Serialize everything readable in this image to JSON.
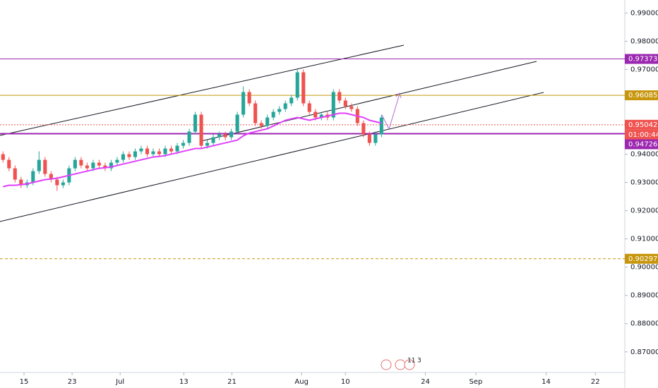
{
  "chart_data": {
    "type": "candlestick",
    "up_color": "#26a69a",
    "down_color": "#ef5350",
    "candles": [
      [
        0.94,
        0.941,
        0.937,
        0.938
      ],
      [
        0.938,
        0.939,
        0.934,
        0.935
      ],
      [
        0.935,
        0.936,
        0.93,
        0.931
      ],
      [
        0.931,
        0.932,
        0.928,
        0.929
      ],
      [
        0.929,
        0.931,
        0.928,
        0.93
      ],
      [
        0.93,
        0.935,
        0.929,
        0.934
      ],
      [
        0.934,
        0.941,
        0.933,
        0.938
      ],
      [
        0.938,
        0.939,
        0.932,
        0.933
      ],
      [
        0.933,
        0.934,
        0.93,
        0.931
      ],
      [
        0.931,
        0.932,
        0.927,
        0.929
      ],
      [
        0.929,
        0.931,
        0.928,
        0.93
      ],
      [
        0.93,
        0.936,
        0.929,
        0.935
      ],
      [
        0.935,
        0.939,
        0.934,
        0.938
      ],
      [
        0.938,
        0.939,
        0.935,
        0.936
      ],
      [
        0.936,
        0.937,
        0.934,
        0.935
      ],
      [
        0.935,
        0.938,
        0.934,
        0.937
      ],
      [
        0.937,
        0.938,
        0.935,
        0.936
      ],
      [
        0.936,
        0.937,
        0.934,
        0.935
      ],
      [
        0.935,
        0.938,
        0.934,
        0.937
      ],
      [
        0.937,
        0.939,
        0.936,
        0.938
      ],
      [
        0.938,
        0.941,
        0.937,
        0.94
      ],
      [
        0.94,
        0.941,
        0.938,
        0.939
      ],
      [
        0.939,
        0.942,
        0.938,
        0.941
      ],
      [
        0.941,
        0.943,
        0.94,
        0.942
      ],
      [
        0.942,
        0.943,
        0.939,
        0.94
      ],
      [
        0.94,
        0.942,
        0.939,
        0.941
      ],
      [
        0.941,
        0.942,
        0.939,
        0.94
      ],
      [
        0.94,
        0.943,
        0.939,
        0.942
      ],
      [
        0.942,
        0.943,
        0.94,
        0.941
      ],
      [
        0.941,
        0.944,
        0.94,
        0.943
      ],
      [
        0.943,
        0.945,
        0.942,
        0.944
      ],
      [
        0.944,
        0.949,
        0.943,
        0.948
      ],
      [
        0.948,
        0.955,
        0.947,
        0.954
      ],
      [
        0.954,
        0.955,
        0.942,
        0.943
      ],
      [
        0.943,
        0.945,
        0.942,
        0.944
      ],
      [
        0.944,
        0.947,
        0.943,
        0.946
      ],
      [
        0.946,
        0.948,
        0.945,
        0.947
      ],
      [
        0.947,
        0.948,
        0.945,
        0.946
      ],
      [
        0.946,
        0.949,
        0.945,
        0.948
      ],
      [
        0.948,
        0.955,
        0.947,
        0.954
      ],
      [
        0.954,
        0.964,
        0.953,
        0.962
      ],
      [
        0.962,
        0.963,
        0.957,
        0.958
      ],
      [
        0.958,
        0.959,
        0.95,
        0.951
      ],
      [
        0.951,
        0.952,
        0.949,
        0.95
      ],
      [
        0.95,
        0.954,
        0.949,
        0.953
      ],
      [
        0.953,
        0.956,
        0.952,
        0.955
      ],
      [
        0.955,
        0.957,
        0.954,
        0.956
      ],
      [
        0.956,
        0.959,
        0.955,
        0.958
      ],
      [
        0.958,
        0.961,
        0.957,
        0.96
      ],
      [
        0.96,
        0.97,
        0.959,
        0.969
      ],
      [
        0.969,
        0.97,
        0.957,
        0.958
      ],
      [
        0.958,
        0.959,
        0.954,
        0.955
      ],
      [
        0.955,
        0.956,
        0.952,
        0.953
      ],
      [
        0.953,
        0.955,
        0.952,
        0.954
      ],
      [
        0.954,
        0.955,
        0.952,
        0.953
      ],
      [
        0.953,
        0.963,
        0.952,
        0.962
      ],
      [
        0.962,
        0.963,
        0.958,
        0.959
      ],
      [
        0.959,
        0.96,
        0.956,
        0.957
      ],
      [
        0.957,
        0.958,
        0.955,
        0.956
      ],
      [
        0.956,
        0.957,
        0.95,
        0.951
      ],
      [
        0.951,
        0.952,
        0.946,
        0.947
      ],
      [
        0.947,
        0.948,
        0.943,
        0.944
      ],
      [
        0.944,
        0.948,
        0.943,
        0.947
      ],
      [
        0.947,
        0.954,
        0.946,
        0.953
      ]
    ],
    "moving_average": {
      "color": "#e040fb",
      "values": [
        0.9285,
        0.929,
        0.929,
        0.9292,
        0.9295,
        0.93,
        0.9305,
        0.931,
        0.9312,
        0.9315,
        0.932,
        0.9325,
        0.933,
        0.9335,
        0.934,
        0.9345,
        0.935,
        0.9352,
        0.9355,
        0.936,
        0.9365,
        0.937,
        0.9375,
        0.938,
        0.9385,
        0.939,
        0.9392,
        0.9395,
        0.94,
        0.9405,
        0.941,
        0.9415,
        0.942,
        0.942,
        0.9425,
        0.943,
        0.9435,
        0.944,
        0.9445,
        0.945,
        0.9465,
        0.9475,
        0.948,
        0.9485,
        0.949,
        0.95,
        0.951,
        0.952,
        0.9525,
        0.953,
        0.9525,
        0.952,
        0.9525,
        0.953,
        0.9535,
        0.954,
        0.9545,
        0.9545,
        0.954,
        0.9535,
        0.953,
        0.952,
        0.9515,
        0.951
      ]
    },
    "levels": [
      {
        "value": 0.97373,
        "color": "#9c27b0",
        "style": "solid"
      },
      {
        "value": 0.96085,
        "color": "#c7960c",
        "style": "solid"
      },
      {
        "value": 0.95042,
        "color": "#ef5350",
        "style": "dotted"
      },
      {
        "value": 0.94726,
        "color": "#9c27b0",
        "style": "thick"
      },
      {
        "value": 0.90297,
        "color": "#c7960c",
        "style": "dashed"
      }
    ],
    "countdown": "01:00:44",
    "ylim": [
      0.8627,
      0.9946
    ],
    "yticks": [
      {
        "value": 0.99,
        "label": "0.99000"
      },
      {
        "value": 0.98,
        "label": "0.98000"
      },
      {
        "value": 0.97,
        "label": "0.97000"
      },
      {
        "value": 0.94,
        "label": "0.94000"
      },
      {
        "value": 0.93,
        "label": "0.93000"
      },
      {
        "value": 0.92,
        "label": "0.92000"
      },
      {
        "value": 0.91,
        "label": "0.91000"
      },
      {
        "value": 0.9,
        "label": "0.90000"
      },
      {
        "value": 0.89,
        "label": "0.89000"
      },
      {
        "value": 0.88,
        "label": "0.88000"
      },
      {
        "value": 0.87,
        "label": "0.87000"
      }
    ],
    "xlim": [
      0,
      104
    ],
    "xticks": [
      {
        "value": 4,
        "label": "15"
      },
      {
        "value": 12,
        "label": "23"
      },
      {
        "value": 20,
        "label": "Jul"
      },
      {
        "value": 30.6,
        "label": "13"
      },
      {
        "value": 38.6,
        "label": "21"
      },
      {
        "value": 50.2,
        "label": "Aug"
      },
      {
        "value": 57.5,
        "label": "10"
      },
      {
        "value": 70.8,
        "label": "24"
      },
      {
        "value": 79.2,
        "label": "Sep"
      },
      {
        "value": 90.9,
        "label": "14"
      },
      {
        "value": 99.1,
        "label": "22"
      }
    ],
    "events": [
      "11",
      "3"
    ]
  }
}
